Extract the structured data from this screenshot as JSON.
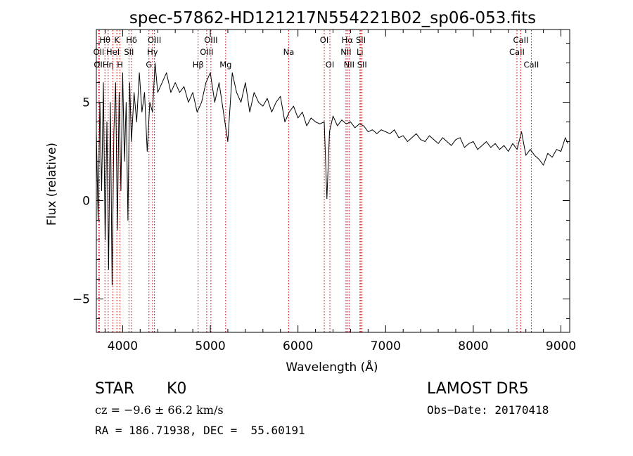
{
  "chart_data": {
    "type": "line",
    "title": "spec-57862-HD121217N554221B02_sp06-053.fits",
    "xlabel": "Wavelength (Å)",
    "ylabel": "Flux (relative)",
    "xlim": [
      3700,
      9100
    ],
    "ylim": [
      -6.7,
      8.7
    ],
    "xticks": [
      4000,
      5000,
      6000,
      7000,
      8000,
      9000
    ],
    "yticks": [
      -5,
      0,
      5
    ],
    "grid": false,
    "line_color": "#000000",
    "marker_color": "#cc0000",
    "series": [
      {
        "x": [
          3700,
          3720,
          3740,
          3760,
          3780,
          3800,
          3820,
          3840,
          3860,
          3880,
          3900,
          3920,
          3940,
          3960,
          3980,
          4000,
          4020,
          4040,
          4060,
          4080,
          4100,
          4130,
          4160,
          4190,
          4220,
          4250,
          4280,
          4310,
          4340,
          4370,
          4400,
          4450,
          4500,
          4550,
          4600,
          4650,
          4700,
          4750,
          4800,
          4850,
          4900,
          4950,
          5000,
          5050,
          5100,
          5150,
          5200,
          5250,
          5300,
          5350,
          5400,
          5450,
          5500,
          5550,
          5600,
          5650,
          5700,
          5750,
          5800,
          5850,
          5900,
          5950,
          6000,
          6050,
          6100,
          6150,
          6200,
          6250,
          6300,
          6330,
          6360,
          6400,
          6450,
          6500,
          6550,
          6600,
          6650,
          6700,
          6750,
          6800,
          6850,
          6900,
          6950,
          7000,
          7050,
          7100,
          7150,
          7200,
          7250,
          7300,
          7350,
          7400,
          7450,
          7500,
          7550,
          7600,
          7650,
          7700,
          7750,
          7800,
          7850,
          7900,
          7950,
          8000,
          8050,
          8100,
          8150,
          8200,
          8250,
          8300,
          8350,
          8400,
          8450,
          8500,
          8550,
          8600,
          8650,
          8700,
          8750,
          8800,
          8850,
          8900,
          8950,
          9000,
          9050,
          9080
        ],
        "y": [
          3.5,
          -1.0,
          5.0,
          0.5,
          6.0,
          -2.0,
          4.0,
          -3.5,
          5.0,
          -4.3,
          3.5,
          6.0,
          -1.5,
          5.5,
          0.5,
          6.5,
          2.0,
          5.0,
          -1.0,
          6.0,
          3.0,
          5.5,
          4.0,
          6.5,
          4.5,
          5.5,
          2.5,
          5.0,
          4.5,
          7.0,
          5.5,
          6.0,
          6.5,
          5.5,
          6.0,
          5.5,
          5.8,
          5.0,
          5.5,
          4.5,
          5.0,
          6.0,
          6.5,
          5.0,
          6.0,
          4.5,
          3.0,
          6.5,
          5.5,
          5.0,
          6.0,
          4.5,
          5.5,
          5.0,
          4.8,
          5.2,
          4.5,
          5.0,
          5.3,
          4.0,
          4.5,
          4.8,
          4.2,
          4.5,
          3.8,
          4.2,
          4.0,
          3.9,
          4.0,
          0.1,
          3.5,
          4.3,
          3.8,
          4.1,
          3.9,
          4.0,
          3.7,
          3.9,
          3.8,
          3.5,
          3.6,
          3.4,
          3.6,
          3.5,
          3.4,
          3.6,
          3.2,
          3.3,
          3.0,
          3.2,
          3.4,
          3.1,
          3.0,
          3.3,
          3.1,
          2.9,
          3.2,
          3.0,
          2.8,
          3.1,
          3.2,
          2.7,
          2.9,
          3.0,
          2.6,
          2.8,
          3.0,
          2.7,
          2.9,
          2.6,
          2.8,
          2.5,
          2.9,
          2.6,
          3.5,
          2.3,
          2.6,
          2.3,
          2.1,
          1.8,
          2.4,
          2.2,
          2.6,
          2.5,
          3.2,
          2.9
        ]
      }
    ],
    "lines": [
      {
        "x": 3727,
        "label": "OII",
        "row": 1
      },
      {
        "x": 3734,
        "label": "OII",
        "row": 2
      },
      {
        "x": 3798,
        "label": "Hθ",
        "row": 0
      },
      {
        "x": 3835,
        "label": "Hη",
        "row": 2
      },
      {
        "x": 3889,
        "label": "HeI",
        "row": 1
      },
      {
        "x": 3934,
        "label": "K",
        "row": 0
      },
      {
        "x": 3969,
        "label": "H",
        "row": 2
      },
      {
        "x": 4072,
        "label": "SII",
        "row": 1
      },
      {
        "x": 4102,
        "label": "Hδ",
        "row": 0
      },
      {
        "x": 4300,
        "label": "G",
        "row": 2
      },
      {
        "x": 4341,
        "label": "Hγ",
        "row": 1
      },
      {
        "x": 4363,
        "label": "OIII",
        "row": 0
      },
      {
        "x": 4861,
        "label": "Hβ",
        "row": 2
      },
      {
        "x": 4959,
        "label": "OIII",
        "row": 1
      },
      {
        "x": 5007,
        "label": "OIII",
        "row": 0
      },
      {
        "x": 5175,
        "label": "Mg",
        "row": 2
      },
      {
        "x": 5894,
        "label": "Na",
        "row": 1
      },
      {
        "x": 6300,
        "label": "OI",
        "row": 0
      },
      {
        "x": 6364,
        "label": "OI",
        "row": 2
      },
      {
        "x": 6548,
        "label": "NII",
        "row": 1
      },
      {
        "x": 6563,
        "label": "Hα",
        "row": 0
      },
      {
        "x": 6583,
        "label": "NII",
        "row": 2
      },
      {
        "x": 6707,
        "label": "Li",
        "row": 1
      },
      {
        "x": 6717,
        "label": "SII",
        "row": 0
      },
      {
        "x": 6731,
        "label": "SII",
        "row": 2
      },
      {
        "x": 8498,
        "label": "CaII",
        "row": 1
      },
      {
        "x": 8542,
        "label": "CaII",
        "row": 0
      },
      {
        "x": 8662,
        "label": "CaII",
        "row": 2
      }
    ]
  },
  "info": {
    "class": "STAR",
    "subclass": "K0",
    "survey": "LAMOST DR5",
    "cz": "cz = −9.6 ± 66.2 km/s",
    "obs_date": "Obs−Date: 20170418",
    "coords": "RA = 186.71938, DEC =  55.60191"
  }
}
